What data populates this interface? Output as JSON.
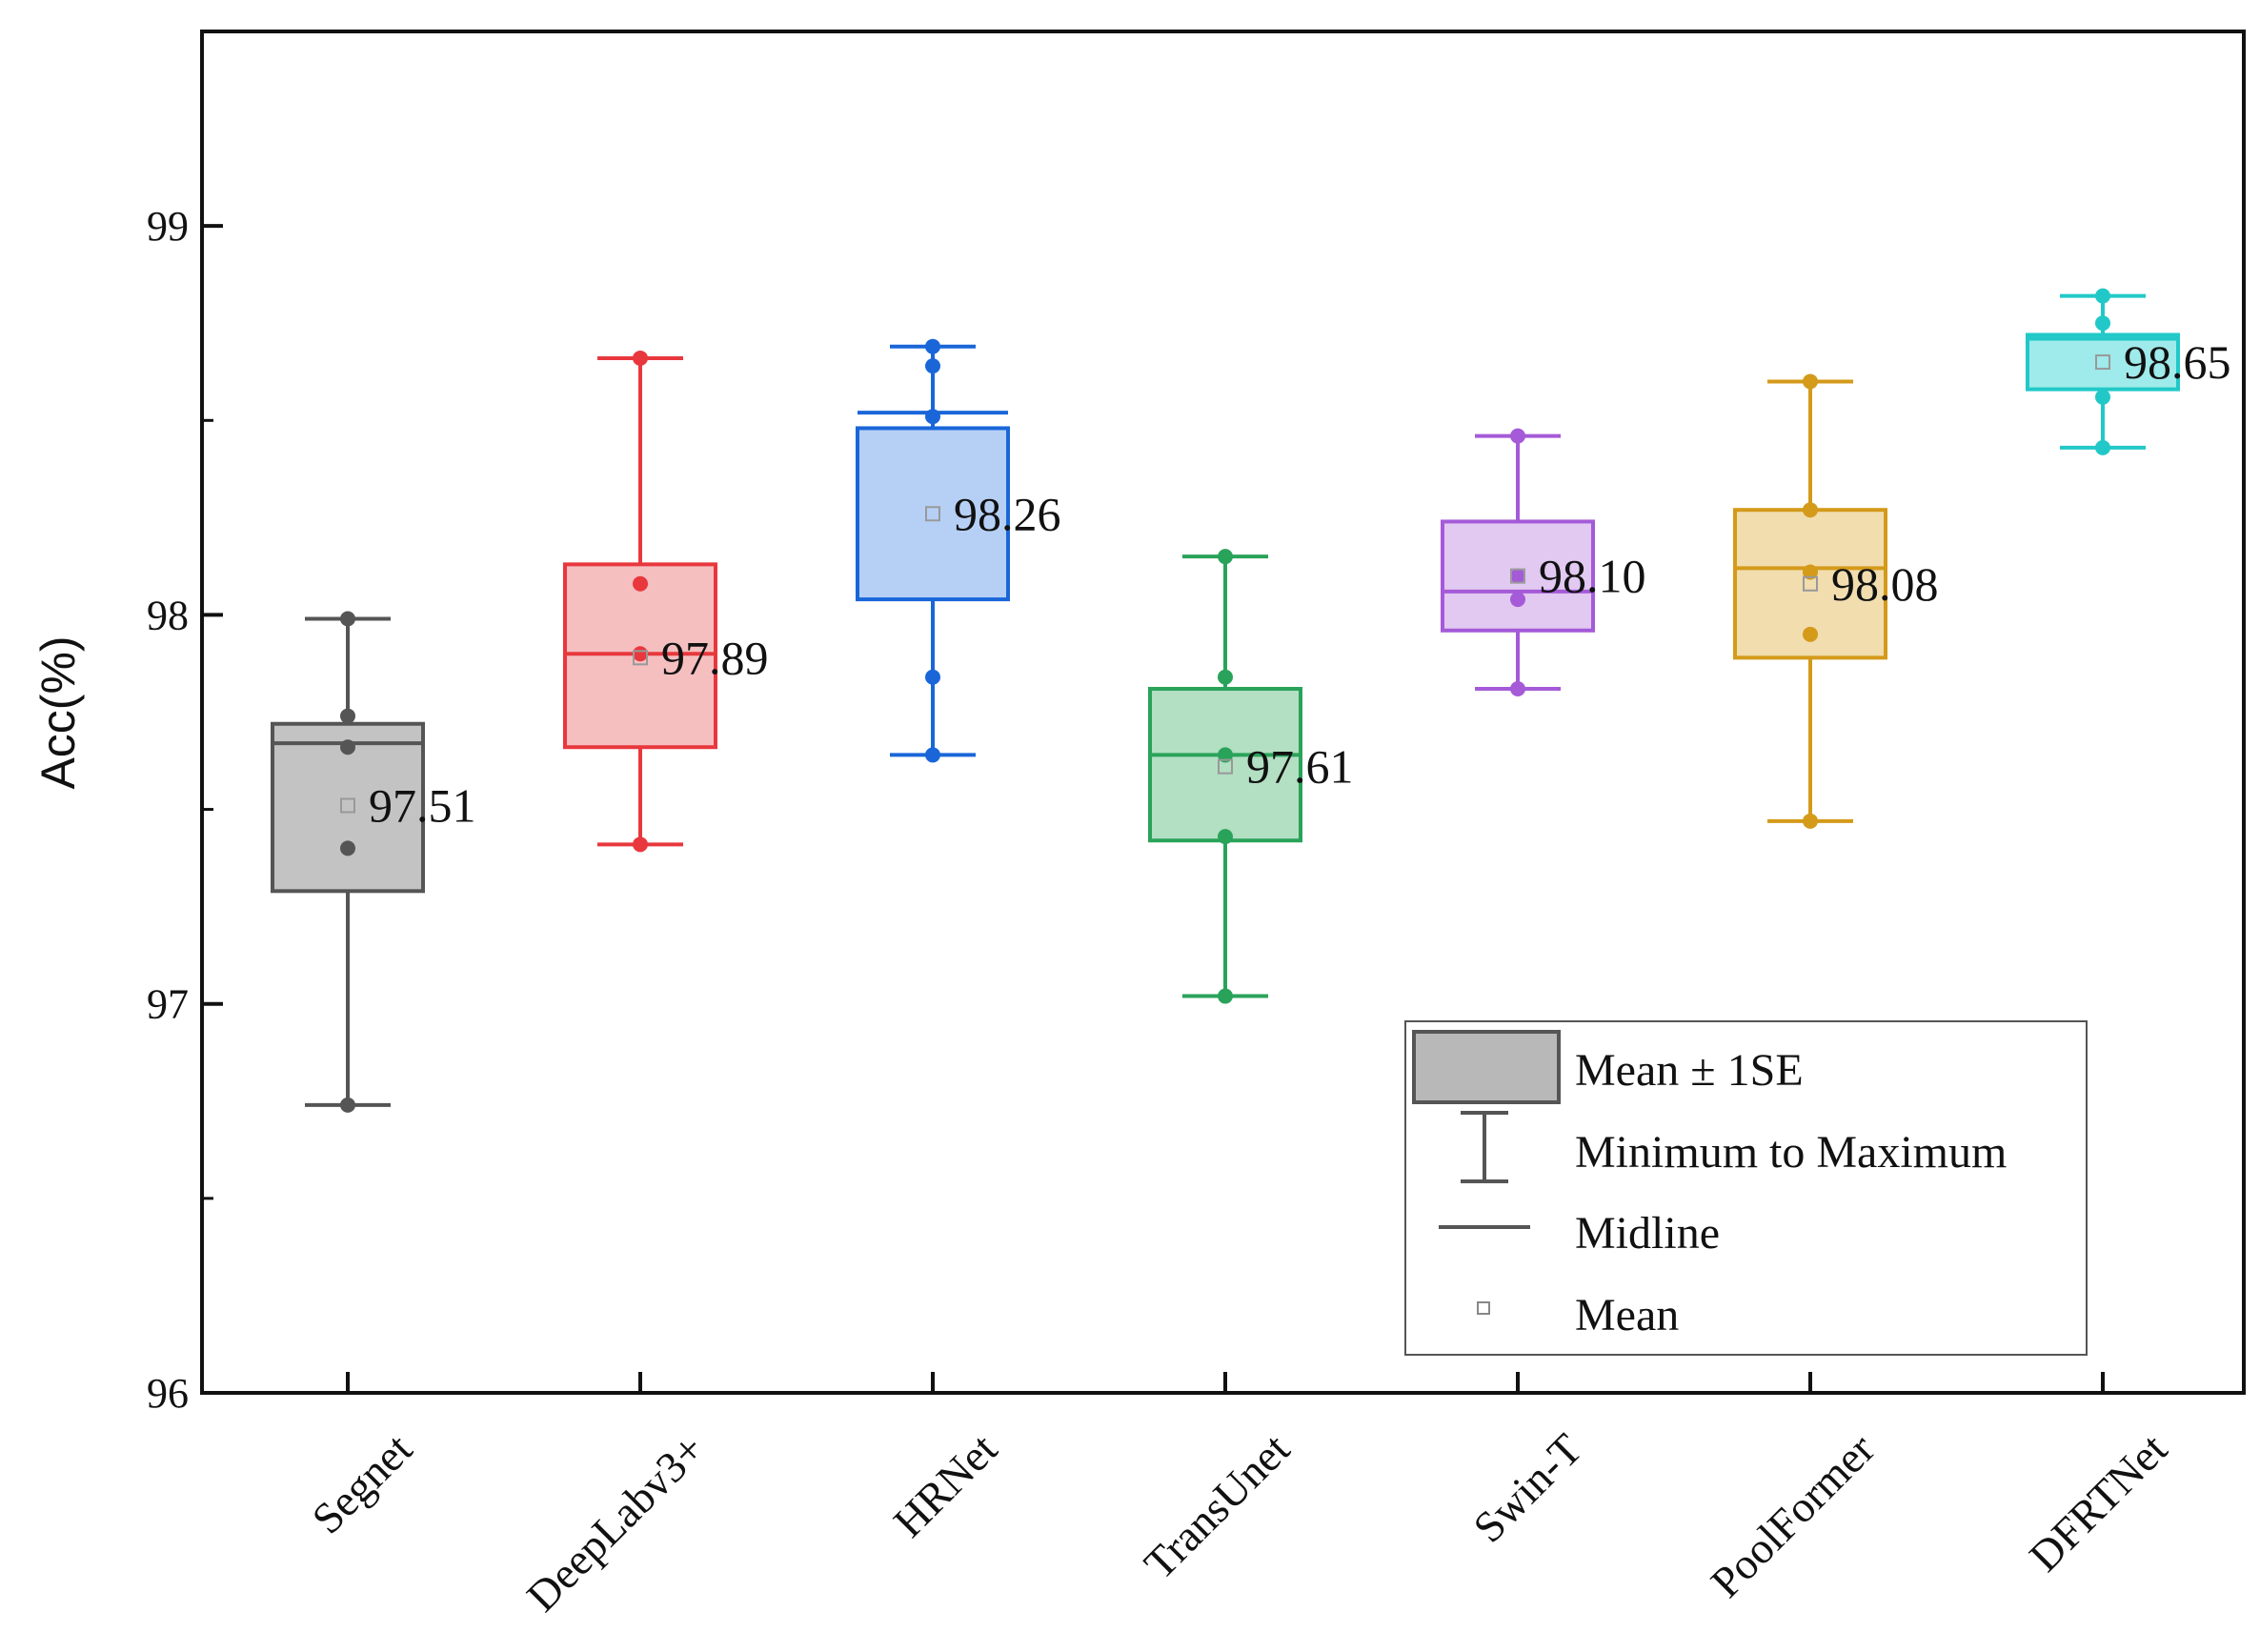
{
  "chart_data": {
    "type": "box",
    "ylabel": "Acc(%)",
    "xlabel": "",
    "ylim": [
      96,
      99.5
    ],
    "yticks": [
      96,
      97,
      98,
      99
    ],
    "grid": false,
    "categories": [
      "Segnet",
      "DeepLabv3+",
      "HRNet",
      "TransUnet",
      "Swin-T",
      "PoolFormer",
      "DFRTNet"
    ],
    "colors": [
      "#555555",
      "#e8383d",
      "#1a66d9",
      "#2aa35a",
      "#a55ad8",
      "#d49a1a",
      "#22c8c8"
    ],
    "fills": [
      "#b8b8b8",
      "#f3b4b5",
      "#a9c8f3",
      "#a6d9b8",
      "#dcc0f0",
      "#efd7a0",
      "#8ee6e6"
    ],
    "boxes": [
      {
        "name": "Segnet",
        "min": 96.74,
        "max": 97.99,
        "q_low": 97.29,
        "q_high": 97.72,
        "midline": 97.67,
        "mean": 97.51,
        "mean_label": "97.51",
        "points": [
          97.99,
          97.74,
          97.66,
          97.4,
          96.74
        ]
      },
      {
        "name": "DeepLabv3+",
        "min": 97.41,
        "max": 98.66,
        "q_low": 97.66,
        "q_high": 98.13,
        "midline": 97.9,
        "mean": 97.89,
        "mean_label": "97.89",
        "points": [
          98.66,
          98.08,
          97.9,
          97.41
        ]
      },
      {
        "name": "HRNet",
        "min": 97.64,
        "max": 98.69,
        "q_low": 98.04,
        "q_high": 98.48,
        "midline": 98.52,
        "mean": 98.26,
        "mean_label": "98.26",
        "points": [
          98.69,
          98.64,
          98.51,
          97.84,
          97.64
        ]
      },
      {
        "name": "TransUnet",
        "min": 97.02,
        "max": 98.15,
        "q_low": 97.42,
        "q_high": 97.81,
        "midline": 97.64,
        "mean": 97.61,
        "mean_label": "97.61",
        "points": [
          98.15,
          97.84,
          97.64,
          97.43,
          97.02
        ]
      },
      {
        "name": "Swin-T",
        "min": 97.81,
        "max": 98.46,
        "q_low": 97.96,
        "q_high": 98.24,
        "midline": 98.06,
        "mean": 98.1,
        "mean_label": "98.10",
        "points": [
          98.46,
          98.1,
          98.04,
          97.81
        ]
      },
      {
        "name": "PoolFormer",
        "min": 97.47,
        "max": 98.6,
        "q_low": 97.89,
        "q_high": 98.27,
        "midline": 98.12,
        "mean": 98.08,
        "mean_label": "98.08",
        "points": [
          98.6,
          98.27,
          98.11,
          97.95,
          97.47
        ]
      },
      {
        "name": "DFRTNet",
        "min": 98.43,
        "max": 98.82,
        "q_low": 98.58,
        "q_high": 98.72,
        "midline": 98.71,
        "mean": 98.65,
        "mean_label": "98.65",
        "points": [
          98.82,
          98.75,
          98.56,
          98.43
        ]
      }
    ],
    "legend": {
      "position": "bottom-right",
      "entries": [
        "Mean ± 1SE",
        "Minimum to Maximum",
        "Midline",
        "Mean"
      ]
    }
  }
}
